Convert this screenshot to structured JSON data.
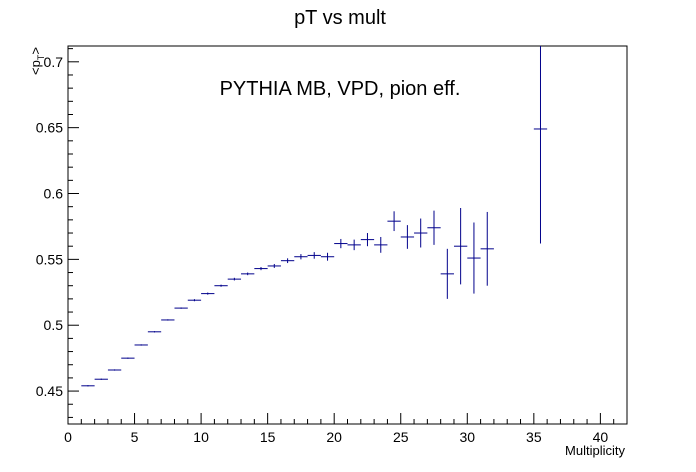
{
  "chart_data": {
    "type": "scatter",
    "title": "pT vs mult",
    "annotation": "PYTHIA MB, VPD, pion eff.",
    "xlabel": "Multiplicity",
    "ylabel": "<p_T>",
    "ylabel_main": "<p",
    "ylabel_sub": "T",
    "ylabel_close": ">",
    "xlim": [
      0,
      42
    ],
    "ylim": [
      0.425,
      0.712
    ],
    "grid": false,
    "marker_color": "#00008b",
    "x_ticks": [
      0,
      5,
      10,
      15,
      20,
      25,
      30,
      35,
      40
    ],
    "x_tick_labels": [
      "0",
      "5",
      "10",
      "15",
      "20",
      "25",
      "30",
      "35",
      "40"
    ],
    "y_ticks": [
      0.45,
      0.5,
      0.55,
      0.6,
      0.65,
      0.7
    ],
    "y_tick_labels": [
      "0.45",
      "0.5",
      "0.55",
      "0.6",
      "0.65",
      "0.7"
    ],
    "series": [
      {
        "points": [
          {
            "x": 1.5,
            "y": 0.454,
            "err": 0.0005
          },
          {
            "x": 2.5,
            "y": 0.459,
            "err": 0.0005
          },
          {
            "x": 3.5,
            "y": 0.466,
            "err": 0.0005
          },
          {
            "x": 4.5,
            "y": 0.475,
            "err": 0.0005
          },
          {
            "x": 5.5,
            "y": 0.485,
            "err": 0.0005
          },
          {
            "x": 6.5,
            "y": 0.495,
            "err": 0.0005
          },
          {
            "x": 7.5,
            "y": 0.504,
            "err": 0.0005
          },
          {
            "x": 8.5,
            "y": 0.513,
            "err": 0.0005
          },
          {
            "x": 9.5,
            "y": 0.519,
            "err": 0.0008
          },
          {
            "x": 10.5,
            "y": 0.524,
            "err": 0.0008
          },
          {
            "x": 11.5,
            "y": 0.53,
            "err": 0.0008
          },
          {
            "x": 12.5,
            "y": 0.535,
            "err": 0.001
          },
          {
            "x": 13.5,
            "y": 0.539,
            "err": 0.001
          },
          {
            "x": 14.5,
            "y": 0.543,
            "err": 0.0012
          },
          {
            "x": 15.5,
            "y": 0.545,
            "err": 0.0015
          },
          {
            "x": 16.5,
            "y": 0.549,
            "err": 0.0018
          },
          {
            "x": 17.5,
            "y": 0.552,
            "err": 0.002
          },
          {
            "x": 18.5,
            "y": 0.553,
            "err": 0.0025
          },
          {
            "x": 19.5,
            "y": 0.552,
            "err": 0.003
          },
          {
            "x": 20.5,
            "y": 0.562,
            "err": 0.0035
          },
          {
            "x": 21.5,
            "y": 0.561,
            "err": 0.004
          },
          {
            "x": 22.5,
            "y": 0.565,
            "err": 0.005
          },
          {
            "x": 23.5,
            "y": 0.561,
            "err": 0.006
          },
          {
            "x": 24.5,
            "y": 0.579,
            "err": 0.0075
          },
          {
            "x": 25.5,
            "y": 0.567,
            "err": 0.009
          },
          {
            "x": 26.5,
            "y": 0.57,
            "err": 0.011
          },
          {
            "x": 27.5,
            "y": 0.574,
            "err": 0.013
          },
          {
            "x": 28.5,
            "y": 0.539,
            "err": 0.019
          },
          {
            "x": 29.5,
            "y": 0.56,
            "err": 0.029
          },
          {
            "x": 30.5,
            "y": 0.551,
            "err": 0.027
          },
          {
            "x": 31.5,
            "y": 0.558,
            "err": 0.028
          },
          {
            "x": 35.5,
            "y": 0.649,
            "err": 0.087
          }
        ]
      }
    ]
  }
}
